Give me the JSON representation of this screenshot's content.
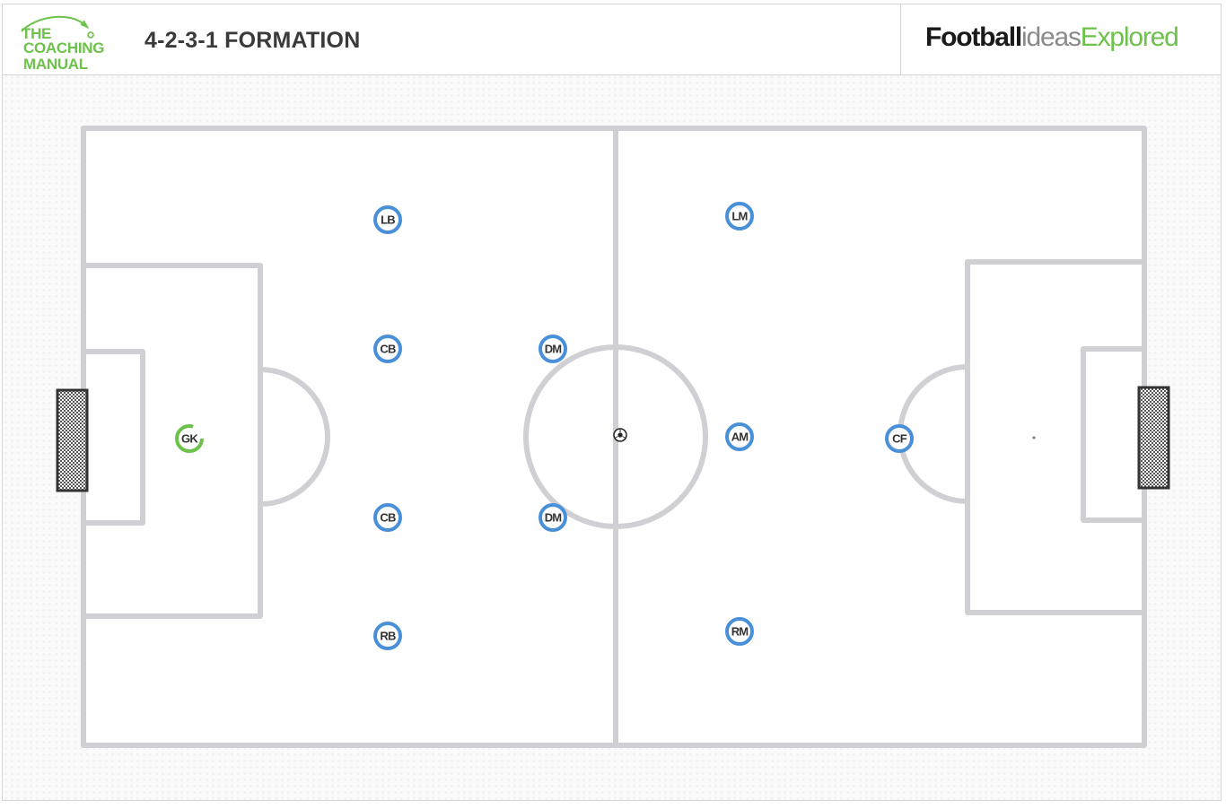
{
  "header": {
    "logo": {
      "line1": "THE",
      "line2": "COACHING",
      "line3": "MANUAL"
    },
    "title": "4-2-3-1 FORMATION",
    "brand": {
      "part1": "Football",
      "part2": "ideas",
      "part3": "Explored"
    }
  },
  "colors": {
    "accent_green": "#6cc24a",
    "player_blue": "#4a90d9",
    "pitch_lines": "#d0d0d4",
    "goal_frame": "#333333"
  },
  "players": [
    {
      "label": "GK",
      "role": "goalkeeper",
      "color": "green"
    },
    {
      "label": "LB",
      "role": "outfield",
      "color": "blue"
    },
    {
      "label": "CB",
      "role": "outfield",
      "color": "blue"
    },
    {
      "label": "CB",
      "role": "outfield",
      "color": "blue"
    },
    {
      "label": "RB",
      "role": "outfield",
      "color": "blue"
    },
    {
      "label": "DM",
      "role": "outfield",
      "color": "blue"
    },
    {
      "label": "DM",
      "role": "outfield",
      "color": "blue"
    },
    {
      "label": "LM",
      "role": "outfield",
      "color": "blue"
    },
    {
      "label": "AM",
      "role": "outfield",
      "color": "blue"
    },
    {
      "label": "RM",
      "role": "outfield",
      "color": "blue"
    },
    {
      "label": "CF",
      "role": "outfield",
      "color": "blue"
    }
  ],
  "ball": {
    "icon": "football-icon"
  }
}
